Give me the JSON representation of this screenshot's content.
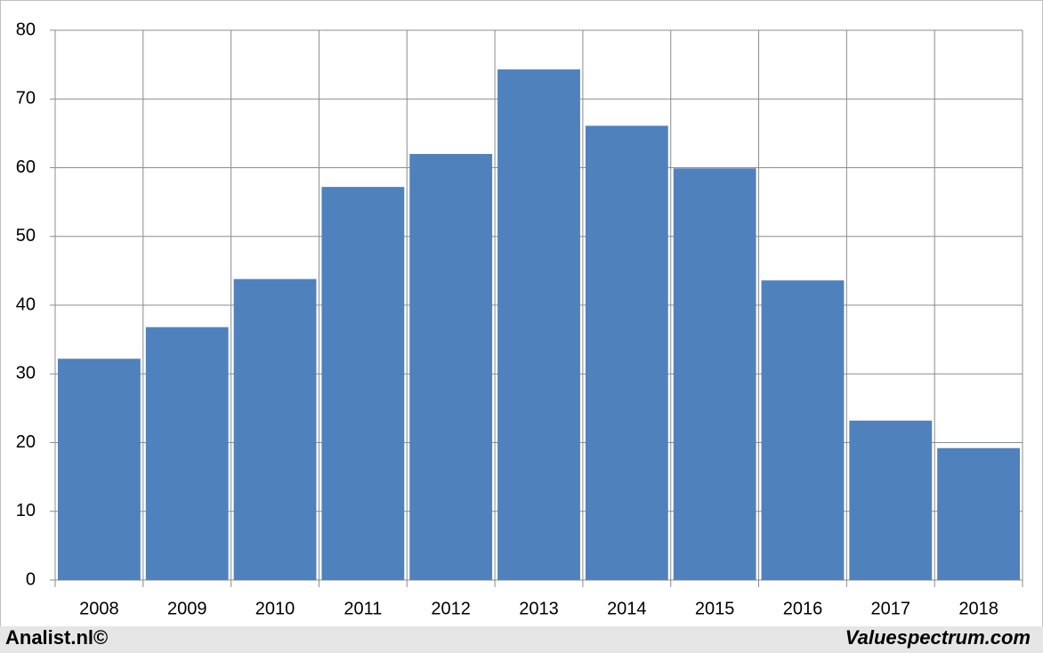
{
  "chart_data": {
    "type": "bar",
    "categories": [
      "2008",
      "2009",
      "2010",
      "2011",
      "2012",
      "2013",
      "2014",
      "2015",
      "2016",
      "2017",
      "2018"
    ],
    "values": [
      32.2,
      36.8,
      43.8,
      57.2,
      62.0,
      74.3,
      66.1,
      59.9,
      43.6,
      23.2,
      19.2
    ],
    "color": "#4f81bd",
    "ylim": [
      0,
      80
    ],
    "yticks": [
      0,
      10,
      20,
      30,
      40,
      50,
      60,
      70,
      80
    ],
    "grid": true
  },
  "footer": {
    "left": "Analist.nl©",
    "right": "Valuespectrum.com"
  }
}
